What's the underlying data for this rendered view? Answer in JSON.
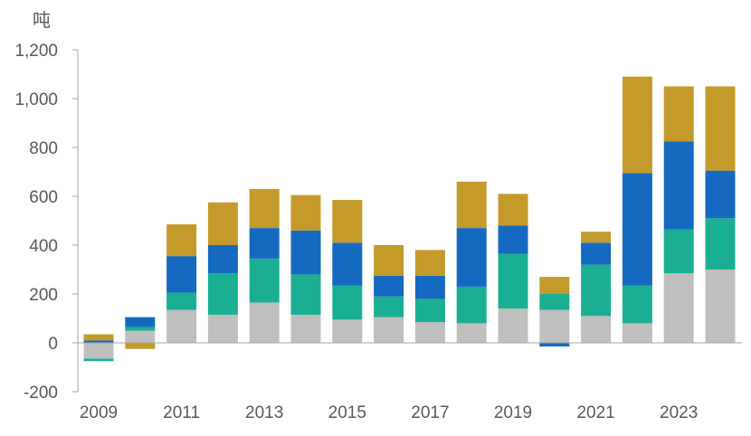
{
  "chart_data": {
    "type": "bar",
    "stacked": true,
    "unit_label": "吨",
    "title": "",
    "xlabel": "",
    "ylabel": "",
    "categories": [
      "2009",
      "2010",
      "2011",
      "2012",
      "2013",
      "2014",
      "2015",
      "2016",
      "2017",
      "2018",
      "2019",
      "2020",
      "2021",
      "2022",
      "2023",
      "2024"
    ],
    "x_tick_labels": [
      "2009",
      "2011",
      "2013",
      "2015",
      "2017",
      "2019",
      "2021",
      "2023"
    ],
    "y_ticks": [
      -200,
      0,
      200,
      400,
      600,
      800,
      1000,
      1200
    ],
    "y_tick_labels": [
      "-200",
      "0",
      "200",
      "400",
      "600",
      "800",
      "1,000",
      "1,200"
    ],
    "ylim": [
      -200,
      1200
    ],
    "grid": false,
    "legend": "none",
    "series": [
      {
        "color": "#bfbfbf",
        "values": [
          -65,
          50,
          135,
          115,
          165,
          115,
          95,
          105,
          85,
          80,
          140,
          135,
          110,
          80,
          285,
          300
        ]
      },
      {
        "color": "#1aaf92",
        "values": [
          -10,
          15,
          70,
          170,
          180,
          165,
          140,
          85,
          95,
          150,
          225,
          65,
          210,
          155,
          180,
          210
        ]
      },
      {
        "color": "#1569c0",
        "values": [
          10,
          40,
          150,
          115,
          125,
          180,
          175,
          85,
          95,
          240,
          115,
          -15,
          90,
          460,
          360,
          195
        ]
      },
      {
        "color": "#c49a2a",
        "values": [
          25,
          -25,
          130,
          175,
          160,
          145,
          175,
          125,
          105,
          190,
          130,
          70,
          45,
          395,
          225,
          345
        ]
      }
    ]
  }
}
